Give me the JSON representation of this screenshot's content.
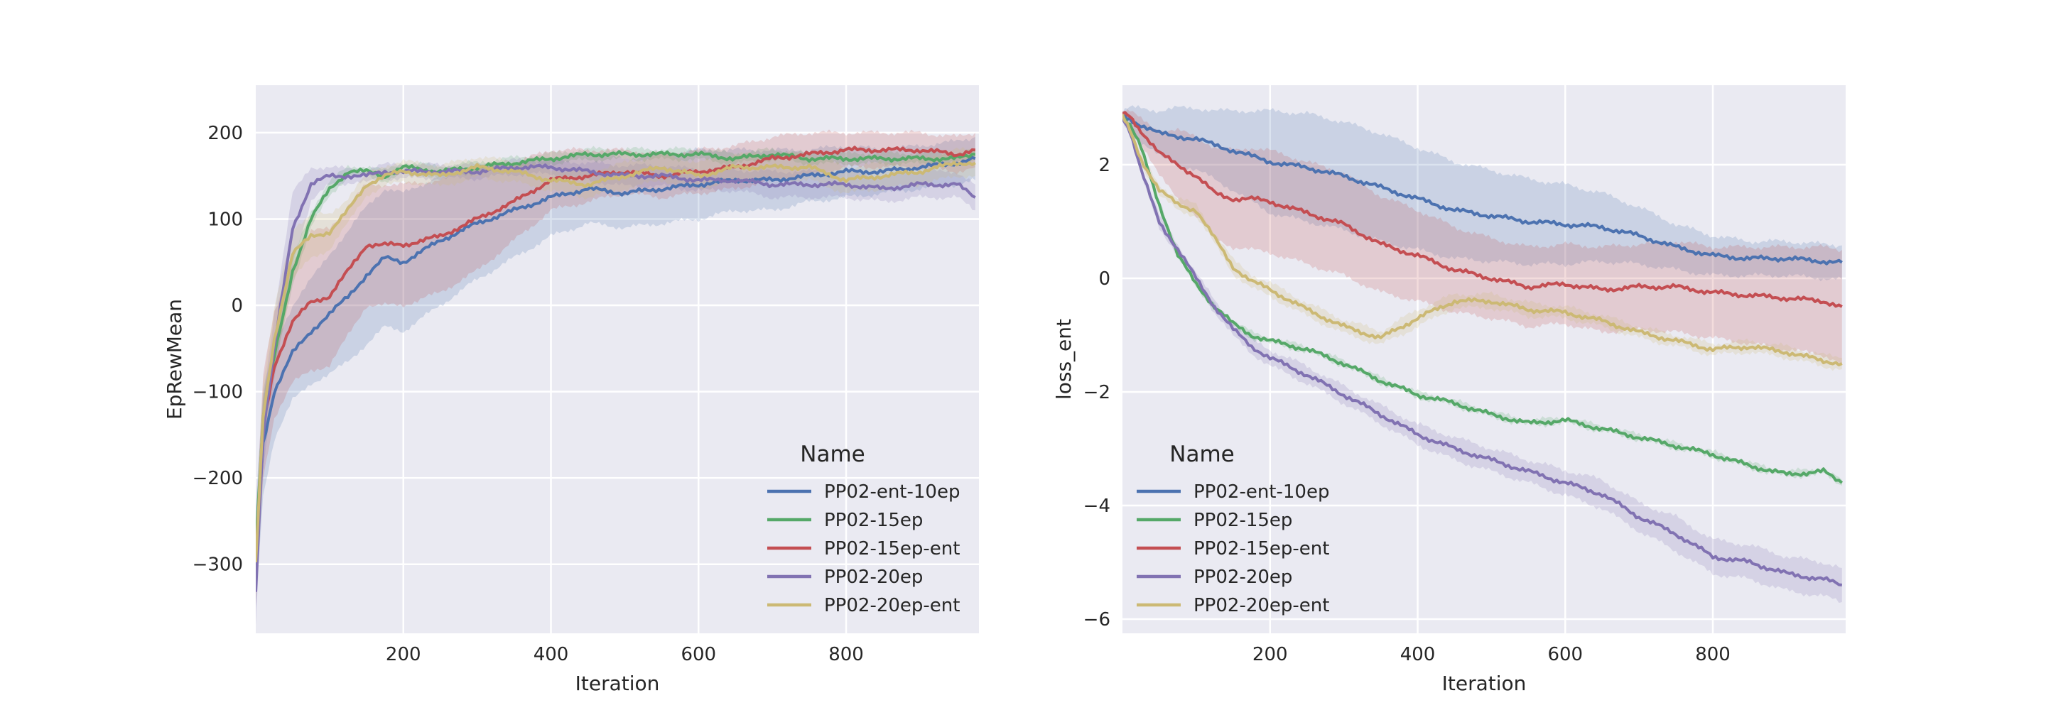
{
  "chart_data": [
    {
      "type": "line",
      "xlabel": "Iteration",
      "ylabel": "EpRewMean",
      "xlim": [
        0,
        980
      ],
      "ylim": [
        -380,
        255
      ],
      "xticks": [
        200,
        400,
        600,
        800
      ],
      "yticks": [
        -300,
        -200,
        -100,
        0,
        100,
        200
      ],
      "xtick_labels": [
        "200",
        "400",
        "600",
        "800"
      ],
      "ytick_labels": [
        "−300",
        "−200",
        "−100",
        "0",
        "100",
        "200"
      ],
      "grid": true,
      "legend_title": "Name",
      "legend_position": "lower right",
      "x": [
        0,
        10,
        25,
        50,
        75,
        100,
        125,
        150,
        175,
        200,
        250,
        300,
        350,
        400,
        450,
        500,
        550,
        600,
        650,
        700,
        750,
        800,
        850,
        900,
        950,
        975
      ],
      "series": [
        {
          "name": "PP02-ent-10ep",
          "color": "#4c72b0",
          "values": [
            -290,
            -160,
            -100,
            -55,
            -30,
            -10,
            10,
            35,
            55,
            50,
            75,
            95,
            110,
            125,
            135,
            130,
            135,
            140,
            145,
            145,
            150,
            155,
            155,
            160,
            165,
            170
          ],
          "band": [
            60,
            60,
            55,
            55,
            60,
            70,
            75,
            80,
            80,
            80,
            75,
            65,
            55,
            45,
            40,
            40,
            40,
            40,
            35,
            35,
            30,
            30,
            25,
            25,
            25,
            25
          ]
        },
        {
          "name": "PP02-15ep",
          "color": "#55a868",
          "values": [
            -280,
            -130,
            -60,
            40,
            100,
            135,
            155,
            155,
            150,
            160,
            155,
            160,
            165,
            170,
            175,
            175,
            175,
            175,
            170,
            175,
            170,
            170,
            170,
            170,
            170,
            175
          ],
          "band": [
            30,
            25,
            15,
            15,
            10,
            8,
            6,
            6,
            6,
            6,
            6,
            6,
            6,
            6,
            6,
            6,
            6,
            6,
            6,
            6,
            6,
            6,
            6,
            6,
            6,
            6
          ]
        },
        {
          "name": "PP02-15ep-ent",
          "color": "#c44e52",
          "values": [
            -300,
            -140,
            -70,
            -20,
            5,
            10,
            40,
            70,
            70,
            70,
            80,
            100,
            120,
            145,
            150,
            155,
            150,
            155,
            160,
            170,
            175,
            180,
            180,
            180,
            175,
            180
          ],
          "band": [
            50,
            60,
            60,
            70,
            80,
            80,
            75,
            70,
            70,
            70,
            65,
            60,
            45,
            35,
            30,
            25,
            25,
            25,
            25,
            25,
            25,
            20,
            20,
            20,
            20,
            20
          ]
        },
        {
          "name": "PP02-20ep",
          "color": "#8172b2",
          "values": [
            -330,
            -150,
            -50,
            90,
            140,
            150,
            150,
            150,
            155,
            155,
            155,
            155,
            160,
            160,
            155,
            150,
            150,
            145,
            145,
            140,
            140,
            140,
            135,
            140,
            140,
            125
          ],
          "band": [
            40,
            40,
            40,
            40,
            20,
            10,
            8,
            8,
            8,
            8,
            8,
            8,
            8,
            8,
            10,
            12,
            12,
            12,
            12,
            15,
            15,
            15,
            15,
            15,
            15,
            15
          ]
        },
        {
          "name": "PP02-20ep-ent",
          "color": "#ccb974",
          "values": [
            -300,
            -130,
            -40,
            60,
            80,
            85,
            110,
            140,
            150,
            155,
            150,
            160,
            155,
            145,
            140,
            150,
            160,
            150,
            160,
            160,
            160,
            145,
            150,
            155,
            165,
            165
          ],
          "band": [
            40,
            40,
            35,
            30,
            25,
            20,
            15,
            12,
            12,
            12,
            12,
            12,
            12,
            12,
            15,
            15,
            15,
            15,
            15,
            15,
            15,
            15,
            15,
            15,
            15,
            15
          ]
        }
      ]
    },
    {
      "type": "line",
      "xlabel": "Iteration",
      "ylabel": "loss_ent",
      "xlim": [
        0,
        980
      ],
      "ylim": [
        -6.25,
        3.4
      ],
      "xticks": [
        200,
        400,
        600,
        800
      ],
      "yticks": [
        -6,
        -4,
        -2,
        0,
        2
      ],
      "xtick_labels": [
        "200",
        "400",
        "600",
        "800"
      ],
      "ytick_labels": [
        "−6",
        "−4",
        "−2",
        "0",
        "2"
      ],
      "grid": true,
      "legend_title": "Name",
      "legend_position": "lower left",
      "x": [
        0,
        10,
        25,
        50,
        75,
        100,
        125,
        150,
        175,
        200,
        250,
        300,
        350,
        400,
        450,
        500,
        550,
        600,
        650,
        700,
        750,
        800,
        850,
        900,
        950,
        975
      ],
      "series": [
        {
          "name": "PP02-ent-10ep",
          "color": "#4c72b0",
          "values": [
            2.85,
            2.8,
            2.7,
            2.55,
            2.5,
            2.45,
            2.35,
            2.25,
            2.15,
            2.05,
            1.95,
            1.8,
            1.6,
            1.4,
            1.2,
            1.1,
            1.0,
            0.95,
            0.9,
            0.75,
            0.55,
            0.4,
            0.35,
            0.35,
            0.3,
            0.28
          ],
          "band": [
            0.1,
            0.2,
            0.3,
            0.4,
            0.5,
            0.55,
            0.6,
            0.7,
            0.8,
            0.9,
            0.95,
            0.95,
            0.95,
            0.9,
            0.85,
            0.8,
            0.75,
            0.7,
            0.6,
            0.5,
            0.4,
            0.35,
            0.3,
            0.3,
            0.3,
            0.3
          ]
        },
        {
          "name": "PP02-15ep",
          "color": "#55a868",
          "values": [
            2.85,
            2.7,
            2.3,
            1.3,
            0.4,
            -0.1,
            -0.5,
            -0.8,
            -1.0,
            -1.1,
            -1.25,
            -1.5,
            -1.8,
            -2.05,
            -2.2,
            -2.4,
            -2.55,
            -2.5,
            -2.65,
            -2.8,
            -2.95,
            -3.1,
            -3.3,
            -3.45,
            -3.4,
            -3.6
          ],
          "band": [
            0.05,
            0.05,
            0.05,
            0.05,
            0.05,
            0.05,
            0.05,
            0.05,
            0.05,
            0.05,
            0.05,
            0.05,
            0.05,
            0.05,
            0.05,
            0.05,
            0.05,
            0.05,
            0.05,
            0.05,
            0.05,
            0.05,
            0.05,
            0.05,
            0.05,
            0.05
          ]
        },
        {
          "name": "PP02-15ep-ent",
          "color": "#c44e52",
          "values": [
            2.9,
            2.85,
            2.6,
            2.2,
            2.0,
            1.8,
            1.5,
            1.4,
            1.4,
            1.35,
            1.15,
            0.95,
            0.6,
            0.4,
            0.15,
            0.0,
            -0.15,
            -0.1,
            -0.2,
            -0.15,
            -0.15,
            -0.25,
            -0.3,
            -0.35,
            -0.4,
            -0.5
          ],
          "band": [
            0.05,
            0.1,
            0.2,
            0.4,
            0.6,
            0.7,
            0.8,
            0.85,
            0.9,
            0.9,
            0.9,
            0.9,
            0.85,
            0.8,
            0.75,
            0.7,
            0.7,
            0.7,
            0.75,
            0.75,
            0.8,
            0.8,
            0.85,
            0.9,
            0.95,
            1.0
          ]
        },
        {
          "name": "PP02-20ep",
          "color": "#8172b2",
          "values": [
            2.85,
            2.6,
            1.9,
            1.0,
            0.5,
            0.0,
            -0.5,
            -0.9,
            -1.2,
            -1.4,
            -1.7,
            -2.05,
            -2.4,
            -2.75,
            -3.0,
            -3.2,
            -3.4,
            -3.6,
            -3.8,
            -4.2,
            -4.5,
            -4.9,
            -5.0,
            -5.2,
            -5.3,
            -5.4
          ],
          "band": [
            0.05,
            0.05,
            0.08,
            0.1,
            0.1,
            0.1,
            0.1,
            0.12,
            0.12,
            0.14,
            0.15,
            0.15,
            0.16,
            0.18,
            0.2,
            0.2,
            0.2,
            0.22,
            0.25,
            0.25,
            0.3,
            0.3,
            0.3,
            0.3,
            0.3,
            0.3
          ]
        },
        {
          "name": "PP02-20ep-ent",
          "color": "#ccb974",
          "values": [
            2.85,
            2.6,
            2.1,
            1.55,
            1.3,
            1.2,
            0.7,
            0.2,
            -0.05,
            -0.2,
            -0.55,
            -0.85,
            -1.05,
            -0.7,
            -0.4,
            -0.4,
            -0.55,
            -0.6,
            -0.75,
            -0.95,
            -1.1,
            -1.25,
            -1.2,
            -1.3,
            -1.45,
            -1.5
          ],
          "band": [
            0.05,
            0.05,
            0.08,
            0.1,
            0.1,
            0.1,
            0.1,
            0.12,
            0.12,
            0.12,
            0.12,
            0.12,
            0.12,
            0.15,
            0.12,
            0.12,
            0.12,
            0.1,
            0.1,
            0.1,
            0.1,
            0.1,
            0.1,
            0.1,
            0.1,
            0.1
          ]
        }
      ]
    }
  ]
}
